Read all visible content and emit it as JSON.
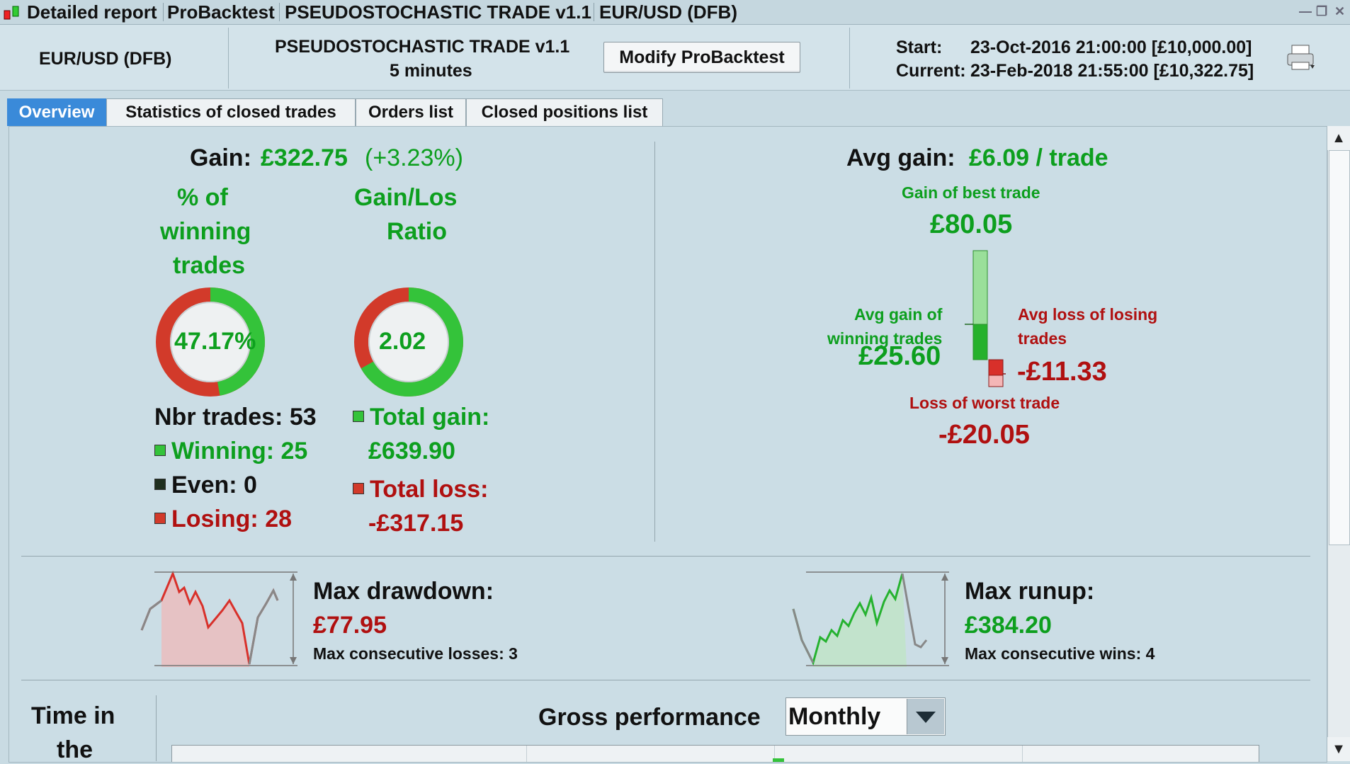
{
  "titlebar": {
    "items": [
      "Detailed report",
      "ProBacktest",
      "PSEUDOSTOCHASTIC TRADE v1.1",
      "EUR/USD (DFB)"
    ]
  },
  "header": {
    "instrument": "EUR/USD (DFB)",
    "strategy": "PSEUDOSTOCHASTIC TRADE v1.1",
    "timeframe": "5 minutes",
    "modify_label": "Modify ProBacktest",
    "start_label": "Start:",
    "start_value": "23-Oct-2016 21:00:00 [£10,000.00]",
    "current_label": "Current:",
    "current_value": "23-Feb-2018 21:55:00 [£10,322.75]"
  },
  "tabs": [
    {
      "label": "Overview",
      "active": true
    },
    {
      "label": "Statistics of closed trades",
      "active": false
    },
    {
      "label": "Orders list",
      "active": false
    },
    {
      "label": "Closed positions list",
      "active": false
    }
  ],
  "overview": {
    "gain_label": "Gain:",
    "gain_value": "£322.75",
    "gain_pct": "(+3.23%)",
    "winning_title": [
      "% of",
      "winning",
      "trades"
    ],
    "winning_pct": "47.17%",
    "winning_fraction": 0.4717,
    "ratio_title": [
      "Gain/Los",
      "Ratio"
    ],
    "ratio_value": "2.02",
    "ratio_fraction": 0.669,
    "nbr_trades": "Nbr trades: 53",
    "winning": "Winning: 25",
    "even": "Even: 0",
    "losing": "Losing: 28",
    "total_gain_label": "Total gain:",
    "total_gain_value": "£639.90",
    "total_loss_label": "Total loss:",
    "total_loss_value": "-£317.15",
    "avg_gain_label": "Avg gain:",
    "avg_gain_value": "£6.09 / trade",
    "best_trade_label": "Gain of best trade",
    "best_trade_value": "£80.05",
    "avg_win_label": [
      "Avg gain of",
      "winning trades"
    ],
    "avg_win_value": "£25.60",
    "avg_loss_label": [
      "Avg loss of losing",
      "trades"
    ],
    "avg_loss_value": "-£11.33",
    "worst_trade_label": "Loss of worst trade",
    "worst_trade_value": "-£20.05",
    "max_drawdown_label": "Max drawdown:",
    "max_drawdown_value": "£77.95",
    "max_consec_losses": "Max consecutive losses: 3",
    "max_runup_label": "Max runup:",
    "max_runup_value": "£384.20",
    "max_consec_wins": "Max consecutive wins: 4",
    "time_in_market": [
      "Time in",
      "the"
    ],
    "gross_perf_label": "Gross performance",
    "gross_perf_period": "Monthly"
  },
  "colors": {
    "green": "#0d9f1e",
    "red": "#b01010",
    "tab_active": "#3a8ad9",
    "panel_bg": "#cbdde5"
  }
}
